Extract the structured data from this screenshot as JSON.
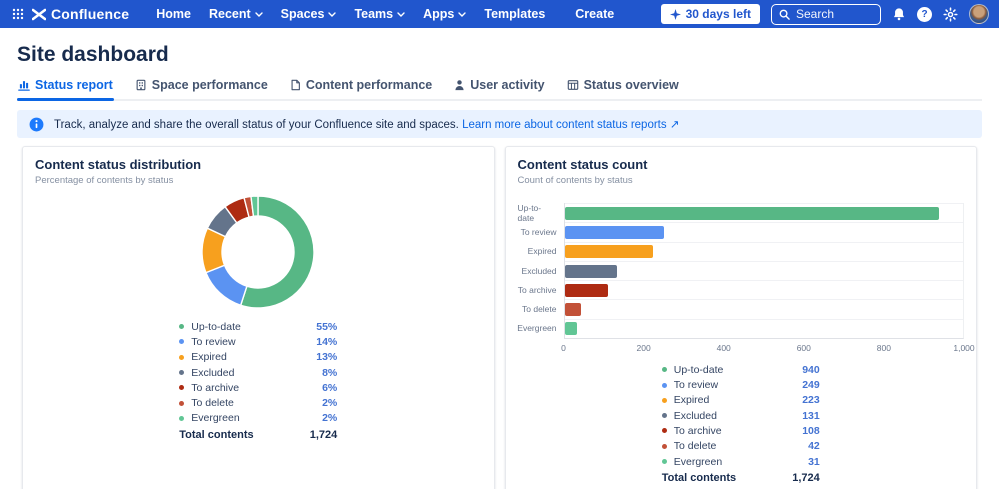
{
  "navbar": {
    "product": "Confluence",
    "items": [
      {
        "label": "Home",
        "chevron": false
      },
      {
        "label": "Recent",
        "chevron": true
      },
      {
        "label": "Spaces",
        "chevron": true
      },
      {
        "label": "Teams",
        "chevron": true
      },
      {
        "label": "Apps",
        "chevron": true
      },
      {
        "label": "Templates",
        "chevron": false
      },
      {
        "label": "Create",
        "chevron": false
      }
    ],
    "trial_label": "30 days left",
    "search_placeholder": "Search"
  },
  "page": {
    "title": "Site dashboard"
  },
  "tabs": [
    {
      "label": "Status report",
      "active": true
    },
    {
      "label": "Space performance",
      "active": false
    },
    {
      "label": "Content performance",
      "active": false
    },
    {
      "label": "User activity",
      "active": false
    },
    {
      "label": "Status overview",
      "active": false
    }
  ],
  "banner": {
    "text": "Track, analyze and share the overall status of your Confluence site and spaces.",
    "link": "Learn more about content status reports",
    "link_suffix": "↗"
  },
  "chart_data": [
    {
      "type": "pie",
      "title": "Content status distribution",
      "subtitle": "Percentage of contents by status",
      "categories": [
        "Up-to-date",
        "To review",
        "Expired",
        "Excluded",
        "To archive",
        "To delete",
        "Evergreen"
      ],
      "values": [
        55,
        14,
        13,
        8,
        6,
        2,
        2
      ],
      "value_suffix": "%",
      "colors": [
        "#57B785",
        "#5B93F2",
        "#F7A01E",
        "#64748B",
        "#AE2B12",
        "#C25138",
        "#61C695"
      ],
      "donut_hole": true,
      "legend_position": "bottom",
      "total_label": "Total contents",
      "total_value": "1,724"
    },
    {
      "type": "bar",
      "orientation": "horizontal",
      "title": "Content status count",
      "subtitle": "Count of contents by status",
      "categories": [
        "Up-to-date",
        "To review",
        "Expired",
        "Excluded",
        "To archive",
        "To delete",
        "Evergreen"
      ],
      "values": [
        940,
        249,
        223,
        131,
        108,
        42,
        31
      ],
      "colors": [
        "#57B785",
        "#5B93F2",
        "#F7A01E",
        "#64748B",
        "#AE2B12",
        "#C25138",
        "#61C695"
      ],
      "xlim": [
        0,
        1000
      ],
      "xticks": [
        0,
        200,
        400,
        600,
        800,
        1000
      ],
      "xtick_labels": [
        "0",
        "200",
        "400",
        "600",
        "800",
        "1,000"
      ],
      "grid": "row-lines",
      "legend_position": "bottom",
      "total_label": "Total contents",
      "total_value": "1,724"
    }
  ]
}
